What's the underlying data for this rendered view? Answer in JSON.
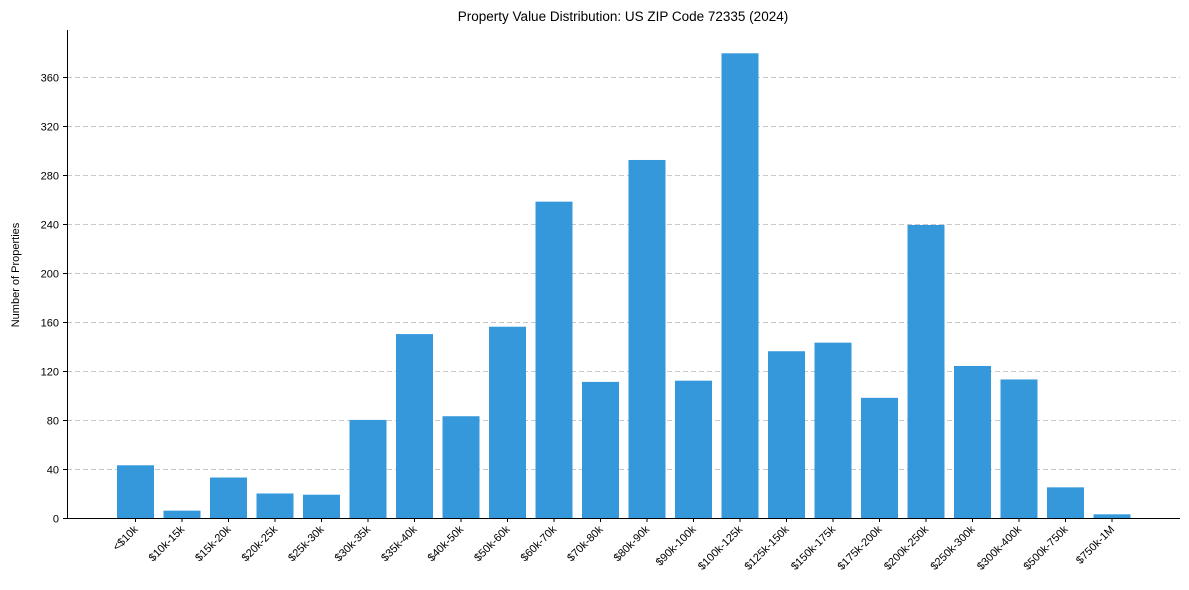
{
  "chart_data": {
    "type": "bar",
    "title": "Property Value Distribution: US ZIP Code 72335 (2024)",
    "xlabel": "",
    "ylabel": "Number of Properties",
    "categories": [
      "<$10k",
      "$10k-15k",
      "$15k-20k",
      "$20k-25k",
      "$25k-30k",
      "$30k-35k",
      "$35k-40k",
      "$40k-50k",
      "$50k-60k",
      "$60k-70k",
      "$70k-80k",
      "$80k-90k",
      "$90k-100k",
      "$100k-125k",
      "$125k-150k",
      "$150k-175k",
      "$175k-200k",
      "$200k-250k",
      "$250k-300k",
      "$300k-400k",
      "$500k-750k",
      "$750k-1M"
    ],
    "values": [
      43,
      6,
      33,
      20,
      19,
      80,
      150,
      83,
      156,
      258,
      111,
      292,
      112,
      379,
      136,
      143,
      98,
      239,
      124,
      113,
      25,
      3
    ],
    "ylim": [
      0,
      398
    ],
    "yticks": [
      0,
      40,
      80,
      120,
      160,
      200,
      240,
      280,
      320,
      360
    ],
    "grid": "y, dashed",
    "bar_color": "#3498db"
  }
}
